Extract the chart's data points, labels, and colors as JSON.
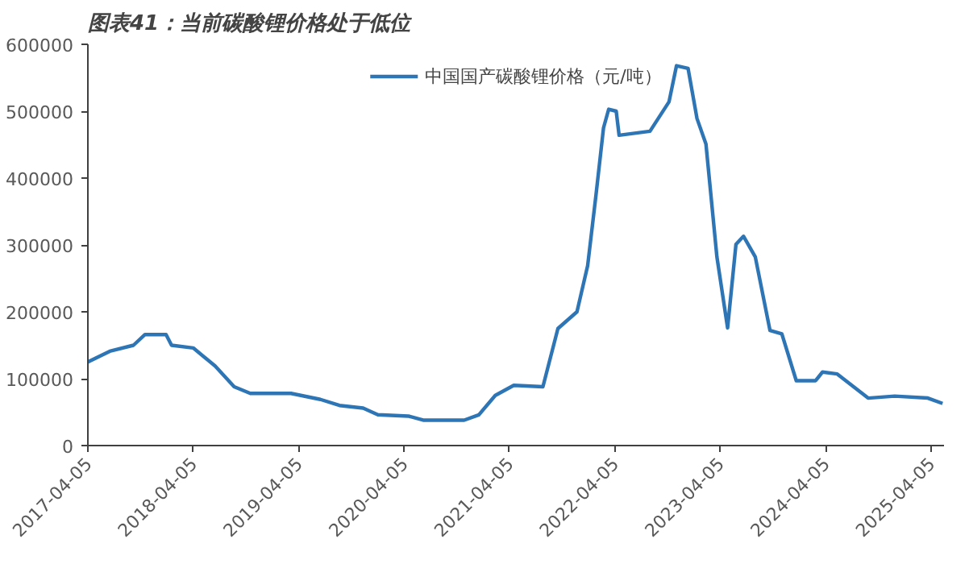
{
  "chart_data": {
    "type": "line",
    "title": "图表41：当前碳酸锂价格处于低位",
    "x": [
      "2017-04-05",
      "2017-06-20",
      "2017-09-10",
      "2017-10-20",
      "2018-01-01",
      "2018-01-20",
      "2018-04-05",
      "2018-06-20",
      "2018-08-25",
      "2018-10-20",
      "2019-03-10",
      "2019-06-20",
      "2019-08-25",
      "2019-11-15",
      "2020-01-05",
      "2020-04-20",
      "2020-06-10",
      "2020-10-30",
      "2020-12-20",
      "2021-02-15",
      "2021-04-20",
      "2021-07-30",
      "2021-09-20",
      "2021-11-25",
      "2022-01-01",
      "2022-01-30",
      "2022-02-25",
      "2022-03-15",
      "2022-04-10",
      "2022-04-20",
      "2022-08-05",
      "2022-10-10",
      "2022-11-05",
      "2022-12-15",
      "2023-01-15",
      "2023-02-15",
      "2023-03-25",
      "2023-05-01",
      "2023-05-30",
      "2023-06-25",
      "2023-08-05",
      "2023-09-25",
      "2023-11-05",
      "2023-12-25",
      "2024-03-01",
      "2024-03-25",
      "2024-05-15",
      "2024-08-30",
      "2024-11-30",
      "2025-03-25",
      "2025-05-15"
    ],
    "series": [
      {
        "name": "中国国产碳酸锂价格（元/吨）",
        "color": "#2e75b6",
        "values": [
          125000,
          141000,
          150000,
          166000,
          166000,
          150000,
          146000,
          119000,
          88000,
          78000,
          78000,
          69000,
          60000,
          56000,
          46000,
          44000,
          38000,
          38000,
          46000,
          75000,
          90000,
          88000,
          175000,
          200000,
          269000,
          375000,
          475000,
          503000,
          500000,
          464000,
          470000,
          514000,
          568000,
          564000,
          489000,
          451000,
          282000,
          176000,
          301000,
          313000,
          282000,
          172000,
          167000,
          97000,
          97000,
          110000,
          107000,
          71000,
          74000,
          71000,
          63000
        ]
      }
    ],
    "xlim": [
      "2017-04-05",
      "2025-05-20"
    ],
    "xticks": [
      "2017-04-05",
      "2018-04-05",
      "2019-04-05",
      "2020-04-05",
      "2021-04-05",
      "2022-04-05",
      "2023-04-05",
      "2024-04-05",
      "2025-04-05"
    ],
    "ylim": [
      0,
      600000
    ],
    "yticks": [
      0,
      100000,
      200000,
      300000,
      400000,
      500000,
      600000
    ],
    "grid": false,
    "legend": "top",
    "marker": "none",
    "line_style": "solid"
  }
}
